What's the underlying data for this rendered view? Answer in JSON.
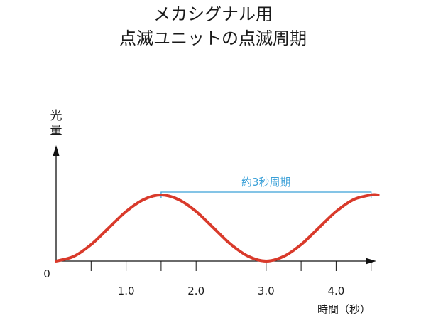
{
  "chart_data": {
    "type": "line",
    "title_lines": [
      "メカシグナル用",
      "点滅ユニットの点滅周期"
    ],
    "ylabel_lines": [
      "光",
      "量"
    ],
    "xlabel": "時間（秒）",
    "origin_label": "0",
    "x_ticks": [
      {
        "value": 0.5,
        "label": ""
      },
      {
        "value": 1.0,
        "label": "1.0"
      },
      {
        "value": 1.5,
        "label": ""
      },
      {
        "value": 2.0,
        "label": "2.0"
      },
      {
        "value": 2.5,
        "label": ""
      },
      {
        "value": 3.0,
        "label": "3.0"
      },
      {
        "value": 3.5,
        "label": ""
      },
      {
        "value": 4.0,
        "label": "4.0"
      },
      {
        "value": 4.5,
        "label": ""
      }
    ],
    "xlim": [
      0,
      4.7
    ],
    "ylim": [
      0,
      1.0
    ],
    "grid": false,
    "series": [
      {
        "color": "#d93a2b",
        "x": [
          0.0,
          0.25,
          0.5,
          0.75,
          1.0,
          1.25,
          1.5,
          1.75,
          2.0,
          2.25,
          2.5,
          2.75,
          3.0,
          3.25,
          3.5,
          3.75,
          4.0,
          4.25,
          4.5,
          4.6
        ],
        "y": [
          0.0,
          0.07,
          0.25,
          0.5,
          0.75,
          0.93,
          1.0,
          0.93,
          0.75,
          0.5,
          0.25,
          0.07,
          0.0,
          0.07,
          0.25,
          0.5,
          0.75,
          0.93,
          1.0,
          1.0
        ]
      }
    ],
    "annotation": {
      "label": "約3秒周期",
      "x_start": 1.5,
      "x_end": 4.5,
      "color": "#3aa0d8"
    },
    "axis_color": "#111111"
  }
}
